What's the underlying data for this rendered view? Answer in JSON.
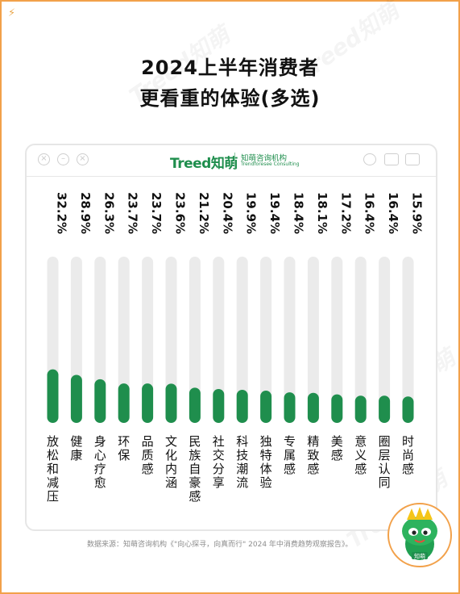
{
  "title_line1": "2024上半年消费者",
  "title_line2": "更看重的体验(多选)",
  "window_controls": [
    "close-icon",
    "minimize-icon",
    "maximize-icon"
  ],
  "logo": {
    "wordmark": "Treed知萌",
    "cn_name": "知萌咨询机构",
    "en_name": "Trendforesee Consulting"
  },
  "source_note": "数据来源：知萌咨询机构《\"向心探寻，向真而行\" 2024 年中消费趋势观察报告》。",
  "mascot_label": "知萌",
  "watermark": "Treed知萌",
  "colors": {
    "bar_fill": "#1f8e4d",
    "track": "#ebebeb",
    "frame": "#f2a14a"
  },
  "chart_data": {
    "type": "bar",
    "orientation": "vertical",
    "title": "2024上半年消费者更看重的体验(多选)",
    "categories": [
      "放松和减压",
      "健康",
      "身心疗愈",
      "环保",
      "品质感",
      "文化内涵",
      "民族自豪感",
      "社交分享",
      "科技潮流",
      "独特体验",
      "专属感",
      "精致感",
      "美感",
      "意义感",
      "圈层认同",
      "时尚感"
    ],
    "value_labels": [
      "32.2%",
      "28.9%",
      "26.3%",
      "23.7%",
      "23.7%",
      "23.6%",
      "21.2%",
      "20.4%",
      "19.9%",
      "19.4%",
      "18.4%",
      "18.1%",
      "17.2%",
      "16.4%",
      "16.4%",
      "15.9%"
    ],
    "values": [
      32.2,
      28.9,
      26.3,
      23.7,
      23.7,
      23.6,
      21.2,
      20.4,
      19.9,
      19.4,
      18.4,
      18.1,
      17.2,
      16.4,
      16.4,
      15.9
    ],
    "ylim": [
      0,
      100
    ],
    "unit": "%",
    "legend": "none",
    "grid": false
  }
}
